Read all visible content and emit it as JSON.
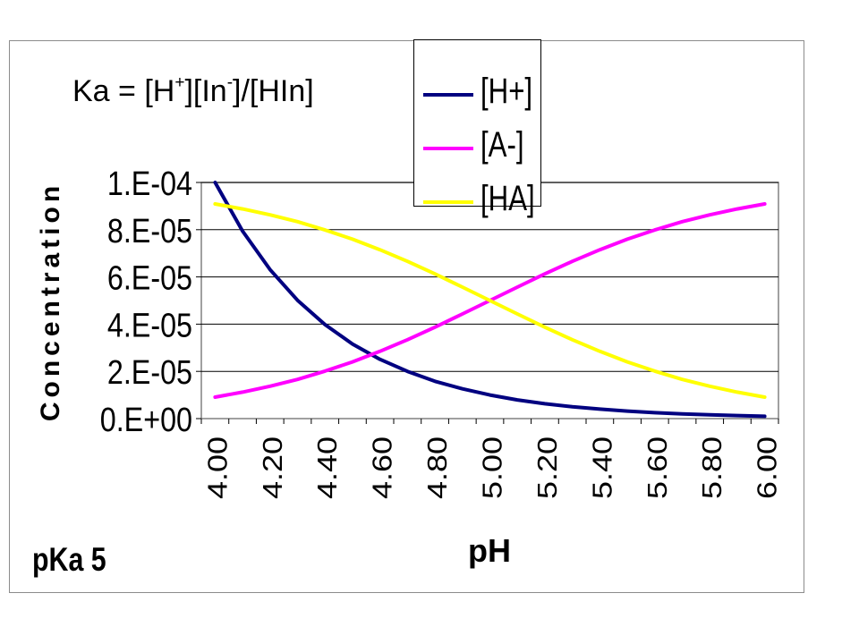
{
  "chart_data": {
    "type": "line",
    "annotations": [
      "pKa 5"
    ],
    "xlabel": "pH",
    "ylabel": "Concentration",
    "x_tick_labels": [
      "4.00",
      "4.20",
      "4.40",
      "4.60",
      "4.80",
      "5.00",
      "5.20",
      "5.40",
      "5.60",
      "5.80",
      "6.00"
    ],
    "y_tick_labels": [
      "0.E+00",
      "2.E-05",
      "4.E-05",
      "6.E-05",
      "8.E-05",
      "1.E-04"
    ],
    "y_ticks": [
      0,
      2e-05,
      4e-05,
      6e-05,
      8e-05,
      0.0001
    ],
    "ylim": [
      0,
      0.0001
    ],
    "x": [
      4.0,
      4.1,
      4.2,
      4.3,
      4.4,
      4.5,
      4.6,
      4.7,
      4.8,
      4.9,
      5.0,
      5.1,
      5.2,
      5.3,
      5.4,
      5.5,
      5.6,
      5.7,
      5.8,
      5.9,
      6.0
    ],
    "grid": "horizontal",
    "legend_position": "top-right",
    "series": [
      {
        "name": "[H+]",
        "color": "#000080",
        "values": [
          0.0001,
          7.94e-05,
          6.31e-05,
          5.01e-05,
          3.98e-05,
          3.16e-05,
          2.51e-05,
          2e-05,
          1.58e-05,
          1.26e-05,
          1e-05,
          7.9e-06,
          6.3e-06,
          5e-06,
          4e-06,
          3.2e-06,
          2.5e-06,
          2e-06,
          1.6e-06,
          1.3e-06,
          1e-06
        ]
      },
      {
        "name": "[A-]",
        "color": "#ff00ff",
        "values": [
          9.1e-06,
          1.12e-05,
          1.37e-05,
          1.66e-05,
          2.01e-05,
          2.4e-05,
          2.85e-05,
          3.34e-05,
          3.87e-05,
          4.43e-05,
          5e-05,
          5.57e-05,
          6.13e-05,
          6.66e-05,
          7.15e-05,
          7.6e-05,
          7.99e-05,
          8.34e-05,
          8.63e-05,
          8.88e-05,
          9.09e-05
        ]
      },
      {
        "name": "[HA]",
        "color": "#ffff00",
        "values": [
          9.09e-05,
          8.88e-05,
          8.63e-05,
          8.34e-05,
          7.99e-05,
          7.6e-05,
          7.15e-05,
          6.66e-05,
          6.13e-05,
          5.57e-05,
          5e-05,
          4.43e-05,
          3.87e-05,
          3.34e-05,
          2.85e-05,
          2.4e-05,
          2.01e-05,
          1.66e-05,
          1.37e-05,
          1.12e-05,
          9.1e-06
        ]
      }
    ]
  },
  "formula": {
    "ka": "Ka = [H",
    "sup1": "+",
    "mid": "][In",
    "sup2": "-",
    "end": "]/[HIn]"
  },
  "legend": [
    {
      "label": "[H+]",
      "color": "#000080"
    },
    {
      "label": "[A-]",
      "color": "#ff00ff"
    },
    {
      "label": "[HA]",
      "color": "#ffff00"
    }
  ]
}
